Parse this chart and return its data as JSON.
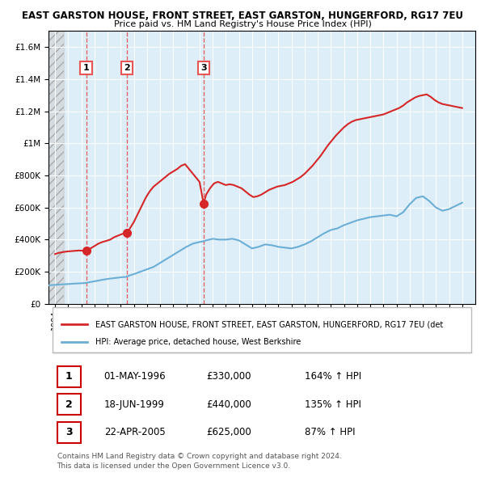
{
  "title1": "EAST GARSTON HOUSE, FRONT STREET, EAST GARSTON, HUNGERFORD, RG17 7EU",
  "title2": "Price paid vs. HM Land Registry's House Price Index (HPI)",
  "legend_line1": "EAST GARSTON HOUSE, FRONT STREET, EAST GARSTON, HUNGERFORD, RG17 7EU (det",
  "legend_line2": "HPI: Average price, detached house, West Berkshire",
  "footer1": "Contains HM Land Registry data © Crown copyright and database right 2024.",
  "footer2": "This data is licensed under the Open Government Licence v3.0.",
  "transactions": [
    {
      "num": 1,
      "date": "01-MAY-1996",
      "price": 330000,
      "hpi_pct": "164%",
      "direction": "↑",
      "year": 1996.37
    },
    {
      "num": 2,
      "date": "18-JUN-1999",
      "price": 440000,
      "hpi_pct": "135%",
      "direction": "↑",
      "year": 1999.46
    },
    {
      "num": 3,
      "date": "22-APR-2005",
      "price": 625000,
      "hpi_pct": "87%",
      "direction": "↑",
      "year": 2005.31
    }
  ],
  "hpi_color": "#6baed6",
  "price_color": "#d62728",
  "dashed_color": "#e85555",
  "ylim": [
    0,
    1700000
  ],
  "xlim_start": 1993.5,
  "xlim_end": 2026.0,
  "hpi_data": {
    "years": [
      1993.5,
      1994,
      1994.5,
      1995,
      1995.5,
      1996,
      1996.37,
      1996.5,
      1997,
      1997.5,
      1998,
      1998.5,
      1999,
      1999.46,
      1999.5,
      2000,
      2000.5,
      2001,
      2001.5,
      2002,
      2002.5,
      2003,
      2003.5,
      2004,
      2004.5,
      2005,
      2005.31,
      2005.5,
      2006,
      2006.5,
      2007,
      2007.5,
      2008,
      2008.5,
      2009,
      2009.5,
      2010,
      2010.5,
      2011,
      2011.5,
      2012,
      2012.5,
      2013,
      2013.5,
      2014,
      2014.5,
      2015,
      2015.5,
      2016,
      2016.5,
      2017,
      2017.5,
      2018,
      2018.5,
      2019,
      2019.5,
      2020,
      2020.5,
      2021,
      2021.5,
      2022,
      2022.5,
      2023,
      2023.5,
      2024,
      2024.5,
      2025
    ],
    "values": [
      115000,
      118000,
      121000,
      123000,
      126000,
      128000,
      130000,
      133000,
      140000,
      148000,
      155000,
      160000,
      165000,
      168000,
      172000,
      185000,
      200000,
      215000,
      230000,
      255000,
      280000,
      305000,
      330000,
      355000,
      375000,
      385000,
      390000,
      395000,
      405000,
      400000,
      400000,
      405000,
      395000,
      370000,
      345000,
      355000,
      370000,
      365000,
      355000,
      350000,
      345000,
      355000,
      370000,
      390000,
      415000,
      440000,
      460000,
      470000,
      490000,
      505000,
      520000,
      530000,
      540000,
      545000,
      550000,
      555000,
      545000,
      570000,
      620000,
      660000,
      670000,
      640000,
      600000,
      580000,
      590000,
      610000,
      630000
    ]
  },
  "price_data": {
    "years": [
      1994,
      1994.3,
      1994.6,
      1994.9,
      1995.2,
      1995.5,
      1995.8,
      1996.1,
      1996.37,
      1996.5,
      1996.7,
      1997.0,
      1997.3,
      1997.6,
      1997.9,
      1998.2,
      1998.5,
      1998.8,
      1999.1,
      1999.46,
      1999.7,
      2000.0,
      2000.3,
      2000.6,
      2000.9,
      2001.2,
      2001.5,
      2001.8,
      2002.1,
      2002.4,
      2002.7,
      2003.0,
      2003.3,
      2003.6,
      2003.9,
      2004.2,
      2004.5,
      2004.8,
      2005.0,
      2005.31,
      2005.5,
      2005.8,
      2006.1,
      2006.4,
      2006.7,
      2007.0,
      2007.3,
      2007.6,
      2007.9,
      2008.2,
      2008.5,
      2008.8,
      2009.1,
      2009.4,
      2009.7,
      2010.0,
      2010.3,
      2010.6,
      2010.9,
      2011.2,
      2011.5,
      2011.8,
      2012.1,
      2012.4,
      2012.7,
      2013.0,
      2013.3,
      2013.6,
      2013.9,
      2014.2,
      2014.5,
      2014.8,
      2015.1,
      2015.4,
      2015.7,
      2016.0,
      2016.3,
      2016.6,
      2016.9,
      2017.2,
      2017.5,
      2017.8,
      2018.1,
      2018.4,
      2018.7,
      2019.0,
      2019.3,
      2019.6,
      2019.9,
      2020.2,
      2020.5,
      2020.8,
      2021.1,
      2021.4,
      2021.7,
      2022.0,
      2022.3,
      2022.6,
      2022.9,
      2023.2,
      2023.5,
      2023.8,
      2024.1,
      2024.4,
      2024.7,
      2025.0
    ],
    "values": [
      310000,
      318000,
      322000,
      326000,
      328000,
      330000,
      332000,
      331000,
      330000,
      335000,
      345000,
      360000,
      375000,
      385000,
      392000,
      400000,
      415000,
      425000,
      435000,
      440000,
      470000,
      510000,
      560000,
      610000,
      660000,
      700000,
      730000,
      750000,
      770000,
      790000,
      810000,
      825000,
      840000,
      860000,
      870000,
      840000,
      810000,
      780000,
      760000,
      625000,
      680000,
      720000,
      750000,
      760000,
      750000,
      740000,
      745000,
      740000,
      730000,
      720000,
      700000,
      680000,
      665000,
      670000,
      680000,
      695000,
      710000,
      720000,
      730000,
      735000,
      740000,
      750000,
      760000,
      775000,
      790000,
      810000,
      835000,
      860000,
      890000,
      920000,
      955000,
      990000,
      1020000,
      1050000,
      1075000,
      1100000,
      1120000,
      1135000,
      1145000,
      1150000,
      1155000,
      1160000,
      1165000,
      1170000,
      1175000,
      1180000,
      1190000,
      1200000,
      1210000,
      1220000,
      1235000,
      1255000,
      1270000,
      1285000,
      1295000,
      1300000,
      1305000,
      1290000,
      1270000,
      1255000,
      1245000,
      1240000,
      1235000,
      1230000,
      1225000,
      1220000
    ]
  }
}
